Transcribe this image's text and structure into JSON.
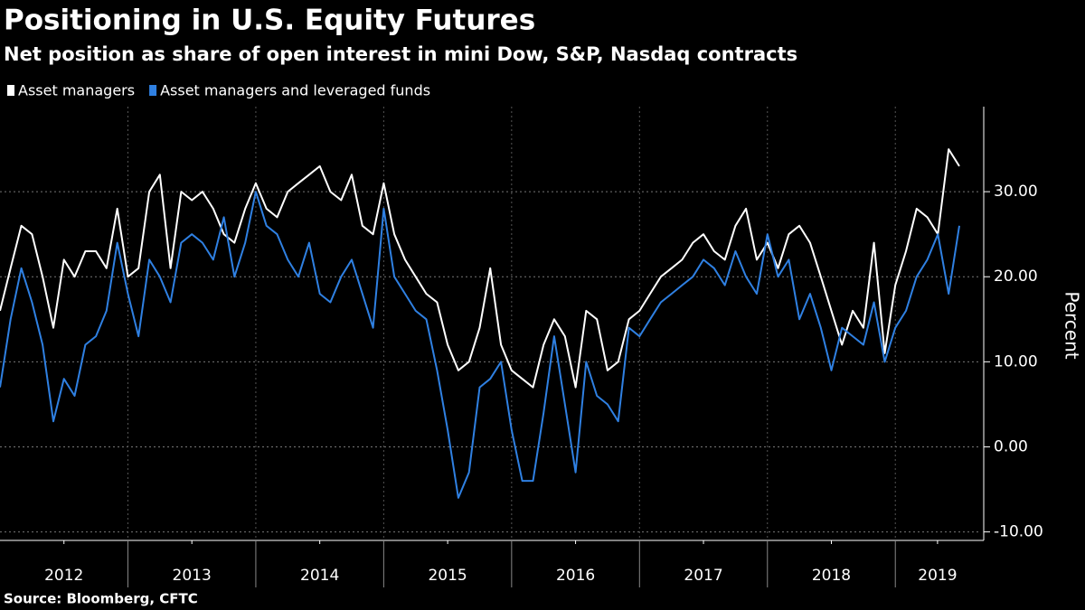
{
  "chart_data": {
    "type": "line",
    "title": "Positioning in U.S. Equity Futures",
    "subtitle": "Net position as share of open interest in mini Dow, S&P, Nasdaq contracts",
    "source": "Source: Bloomberg, CFTC",
    "y_label": "Percent",
    "x": [
      2012.0,
      2012.083,
      2012.167,
      2012.25,
      2012.333,
      2012.417,
      2012.5,
      2012.583,
      2012.667,
      2012.75,
      2012.833,
      2012.917,
      2013.0,
      2013.083,
      2013.167,
      2013.25,
      2013.333,
      2013.417,
      2013.5,
      2013.583,
      2013.667,
      2013.75,
      2013.833,
      2013.917,
      2014.0,
      2014.083,
      2014.167,
      2014.25,
      2014.333,
      2014.417,
      2014.5,
      2014.583,
      2014.667,
      2014.75,
      2014.833,
      2014.917,
      2015.0,
      2015.083,
      2015.167,
      2015.25,
      2015.333,
      2015.417,
      2015.5,
      2015.583,
      2015.667,
      2015.75,
      2015.833,
      2015.917,
      2016.0,
      2016.083,
      2016.167,
      2016.25,
      2016.333,
      2016.417,
      2016.5,
      2016.583,
      2016.667,
      2016.75,
      2016.833,
      2016.917,
      2017.0,
      2017.083,
      2017.167,
      2017.25,
      2017.333,
      2017.417,
      2017.5,
      2017.583,
      2017.667,
      2017.75,
      2017.833,
      2017.917,
      2018.0,
      2018.083,
      2018.167,
      2018.25,
      2018.333,
      2018.417,
      2018.5,
      2018.583,
      2018.667,
      2018.75,
      2018.833,
      2018.917,
      2019.0,
      2019.083,
      2019.167,
      2019.25,
      2019.333,
      2019.417,
      2019.5
    ],
    "series": [
      {
        "name": "Asset managers",
        "color": "#ffffff",
        "values": [
          16,
          21,
          26,
          25,
          20,
          14,
          22,
          20,
          23,
          23,
          21,
          28,
          20,
          21,
          30,
          32,
          21,
          30,
          29,
          30,
          28,
          25,
          24,
          28,
          31,
          28,
          27,
          30,
          31,
          32,
          33,
          30,
          29,
          32,
          26,
          25,
          31,
          25,
          22,
          20,
          18,
          17,
          12,
          9,
          10,
          14,
          21,
          12,
          9,
          8,
          7,
          12,
          15,
          13,
          7,
          16,
          15,
          9,
          10,
          15,
          16,
          18,
          20,
          21,
          22,
          24,
          25,
          23,
          22,
          26,
          28,
          22,
          24,
          21,
          25,
          26,
          24,
          20,
          16,
          12,
          16,
          14,
          24,
          11,
          19,
          23,
          28,
          27,
          25,
          35,
          33
        ]
      },
      {
        "name": "Asset managers and leveraged funds",
        "color": "#2f80e2",
        "values": [
          7,
          15,
          21,
          17,
          12,
          3,
          8,
          6,
          12,
          13,
          16,
          24,
          18,
          13,
          22,
          20,
          17,
          24,
          25,
          24,
          22,
          27,
          20,
          24,
          30,
          26,
          25,
          22,
          20,
          24,
          18,
          17,
          20,
          22,
          18,
          14,
          28,
          20,
          18,
          16,
          15,
          9,
          2,
          -6,
          -3,
          7,
          8,
          10,
          2,
          -4,
          -4,
          4,
          13,
          5,
          -3,
          10,
          6,
          5,
          3,
          14,
          13,
          15,
          17,
          18,
          19,
          20,
          22,
          21,
          19,
          23,
          20,
          18,
          25,
          20,
          22,
          15,
          18,
          14,
          9,
          14,
          13,
          12,
          17,
          10,
          14,
          16,
          20,
          22,
          25,
          18,
          26
        ]
      }
    ],
    "xlim": [
      2012.0,
      2019.67
    ],
    "xticks": [
      {
        "value": 2012.5,
        "label": "2012"
      },
      {
        "value": 2013.5,
        "label": "2013"
      },
      {
        "value": 2014.5,
        "label": "2014"
      },
      {
        "value": 2015.5,
        "label": "2015"
      },
      {
        "value": 2016.5,
        "label": "2016"
      },
      {
        "value": 2017.5,
        "label": "2017"
      },
      {
        "value": 2018.5,
        "label": "2018"
      },
      {
        "value": 2019.33,
        "label": "2019"
      }
    ],
    "ylim": [
      -11,
      40
    ],
    "yticks": [
      {
        "value": -10,
        "label": "-10.00"
      },
      {
        "value": 0,
        "label": "0.00"
      },
      {
        "value": 10,
        "label": "10.00"
      },
      {
        "value": 20,
        "label": "20.00"
      },
      {
        "value": 30,
        "label": "30.00"
      }
    ],
    "grid": true
  }
}
